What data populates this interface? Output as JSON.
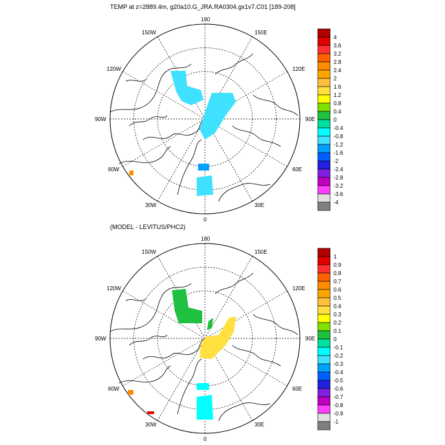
{
  "panels": [
    {
      "id": "top",
      "title": "TEMP at z=2889.4m, g20a10.G_JRA.RA0304.gx1v7.C01 [189-208]",
      "lon_labels": {
        "top": "180",
        "bottom": "0",
        "left": "90W",
        "right": "90E",
        "ul1": "150W",
        "ul2": "120W",
        "ur1": "150E",
        "ur2": "120E",
        "ll1": "60W",
        "ll2": "30W",
        "lr1": "60E",
        "lr2": "30E"
      },
      "colorbar": {
        "labels": [
          "4",
          "3.6",
          "3.2",
          "2.8",
          "2.4",
          "2",
          "1.6",
          "1.2",
          "0.8",
          "0.4",
          "0",
          "-0.4",
          "-0.8",
          "-1.2",
          "-1.6",
          "-2",
          "-2.4",
          "-2.8",
          "-3.2",
          "-3.6",
          "-4"
        ],
        "colors": [
          "#b00000",
          "#e00000",
          "#ff3030",
          "#ff6000",
          "#ff8c00",
          "#ffa500",
          "#ffc040",
          "#ffe040",
          "#ffff00",
          "#80e000",
          "#20c040",
          "#00e0a0",
          "#00ffff",
          "#40e0ff",
          "#00a0ff",
          "#0060ff",
          "#2020e0",
          "#8020e0",
          "#c000c0",
          "#ff40ff",
          "#e0e0e0",
          "#808080"
        ]
      }
    },
    {
      "id": "bottom",
      "title": "(MODEL - LEVITUS/PHC2)",
      "lon_labels": {
        "top": "180",
        "bottom": "0",
        "left": "90W",
        "right": "90E",
        "ul1": "150W",
        "ul2": "120W",
        "ur1": "150E",
        "ur2": "120E",
        "ll1": "60W",
        "ll2": "30W",
        "lr1": "60E",
        "lr2": "30E"
      },
      "colorbar": {
        "labels": [
          "1",
          "0.9",
          "0.8",
          "0.7",
          "0.6",
          "0.5",
          "0.4",
          "0.3",
          "0.2",
          "0.1",
          "0",
          "-0.1",
          "-0.2",
          "-0.3",
          "-0.4",
          "-0.5",
          "-0.6",
          "-0.7",
          "-0.8",
          "-0.9",
          "-1"
        ],
        "colors": [
          "#b00000",
          "#e00000",
          "#ff3030",
          "#ff6000",
          "#ff8c00",
          "#ffa500",
          "#ffc040",
          "#ffe040",
          "#ffff00",
          "#80e000",
          "#20c040",
          "#00e0a0",
          "#00ffff",
          "#40e0ff",
          "#00a0ff",
          "#0060ff",
          "#2020e0",
          "#8020e0",
          "#c000c0",
          "#ff40ff",
          "#e0e0e0",
          "#808080"
        ]
      }
    }
  ],
  "field_colors": {
    "cyan": "#40e0ff",
    "blue": "#00a0ff",
    "orange": "#ff8c00",
    "green": "#20c040",
    "yellow": "#ffe040",
    "teal": "#00ffff",
    "red": "#e00000"
  }
}
